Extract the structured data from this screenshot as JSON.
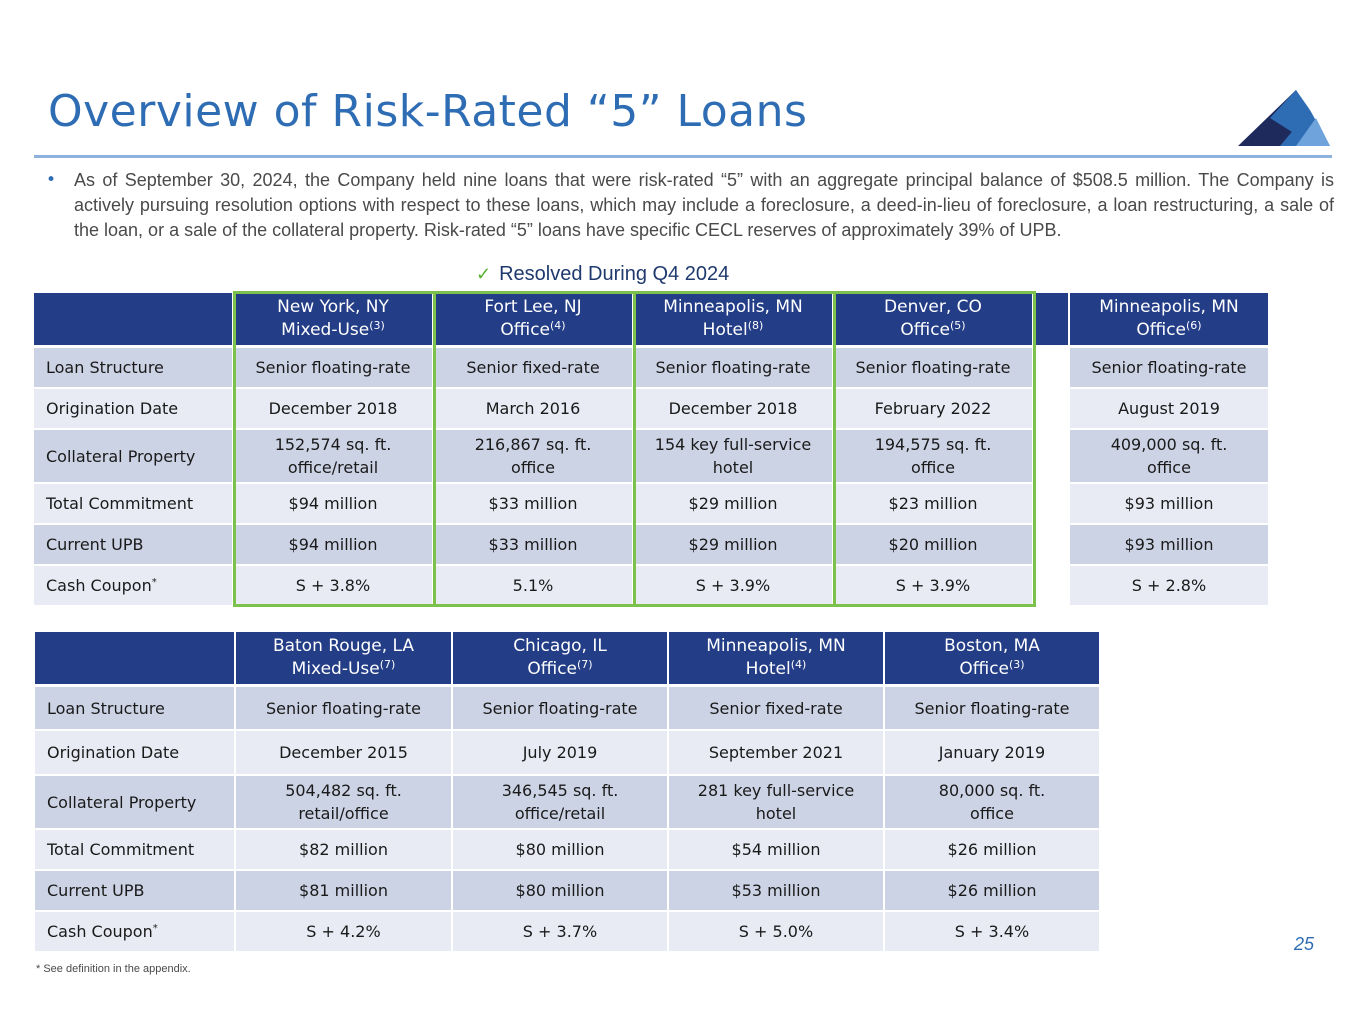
{
  "header": {
    "title": "Overview of Risk-Rated “5” Loans"
  },
  "logo": {
    "icon": "mountain-logo-icon",
    "colors": [
      "#1f2a5c",
      "#2e6db4",
      "#6fa3dc"
    ]
  },
  "bullet": {
    "text": "As of September 30, 2024, the Company held nine loans that were risk-rated “5” with an aggregate principal balance of $508.5 million. The Company is actively pursuing resolution options with respect to these loans, which may include a foreclosure, a deed-in-lieu of foreclosure, a loan restructuring, a sale of the loan, or a sale of the collateral property. Risk-rated “5” loans have specific CECL reserves of approximately 39% of UPB."
  },
  "resolved": {
    "check": "✓",
    "label": "Resolved During Q4 2024",
    "color": "#7dc14d"
  },
  "table1": {
    "columns": [
      {
        "city": "New York, NY",
        "type": "Mixed-Use",
        "note": "(3)"
      },
      {
        "city": "Fort Lee, NJ",
        "type": "Office",
        "note": "(4)"
      },
      {
        "city": "Minneapolis, MN",
        "type": "Hotel",
        "note": "(8)"
      },
      {
        "city": "Denver, CO",
        "type": "Office",
        "note": "(5)"
      },
      {
        "city": "Minneapolis, MN",
        "type": "Office",
        "note": "(6)"
      }
    ],
    "rows": [
      {
        "label": "Loan Structure",
        "cells": [
          "Senior floating-rate",
          "Senior fixed-rate",
          "Senior floating-rate",
          "Senior floating-rate",
          "Senior floating-rate"
        ]
      },
      {
        "label": "Origination Date",
        "cells": [
          "December 2018",
          "March 2016",
          "December 2018",
          "February 2022",
          "August 2019"
        ]
      },
      {
        "label": "Collateral Property",
        "cells": [
          [
            "152,574 sq. ft.",
            "office/retail"
          ],
          [
            "216,867 sq. ft.",
            "office"
          ],
          [
            "154 key full-service",
            "hotel"
          ],
          [
            "194,575 sq. ft.",
            "office"
          ],
          [
            "409,000 sq. ft.",
            "office"
          ]
        ]
      },
      {
        "label": "Total Commitment",
        "cells": [
          "$94 million",
          "$33 million",
          "$29 million",
          "$23 million",
          "$93 million"
        ]
      },
      {
        "label": "Current UPB",
        "cells": [
          "$94 million",
          "$33 million",
          "$29 million",
          "$20 million",
          "$93 million"
        ]
      },
      {
        "label": "Cash Coupon",
        "label_note": "*",
        "cells": [
          "S + 3.8%",
          "5.1%",
          "S + 3.9%",
          "S + 3.9%",
          "S + 2.8%"
        ]
      }
    ]
  },
  "table2": {
    "columns": [
      {
        "city": "Baton Rouge, LA",
        "type": "Mixed-Use",
        "note": "(7)"
      },
      {
        "city": "Chicago, IL",
        "type": "Office",
        "note": "(7)"
      },
      {
        "city": "Minneapolis, MN",
        "type": "Hotel",
        "note": "(4)"
      },
      {
        "city": "Boston, MA",
        "type": "Office",
        "note": "(3)"
      }
    ],
    "rows": [
      {
        "label": "Loan Structure",
        "cells": [
          "Senior floating-rate",
          "Senior floating-rate",
          "Senior fixed-rate",
          "Senior floating-rate"
        ]
      },
      {
        "label": "Origination Date",
        "cells": [
          "December 2015",
          "July 2019",
          "September 2021",
          "January 2019"
        ]
      },
      {
        "label": "Collateral Property",
        "cells": [
          [
            "504,482 sq. ft.",
            "retail/office"
          ],
          [
            "346,545 sq. ft.",
            "office/retail"
          ],
          [
            "281 key full-service",
            "hotel"
          ],
          [
            "80,000 sq. ft.",
            "office"
          ]
        ]
      },
      {
        "label": "Total Commitment",
        "cells": [
          "$82 million",
          "$80 million",
          "$54 million",
          "$26 million"
        ]
      },
      {
        "label": "Current UPB",
        "cells": [
          "$81 million",
          "$80 million",
          "$53 million",
          "$26 million"
        ]
      },
      {
        "label": "Cash Coupon",
        "label_note": "*",
        "cells": [
          "S + 4.2%",
          "S + 3.7%",
          "S + 5.0%",
          "S + 3.4%"
        ]
      }
    ]
  },
  "footer": {
    "footnote": "* See definition in the appendix.",
    "page_number": "25"
  }
}
